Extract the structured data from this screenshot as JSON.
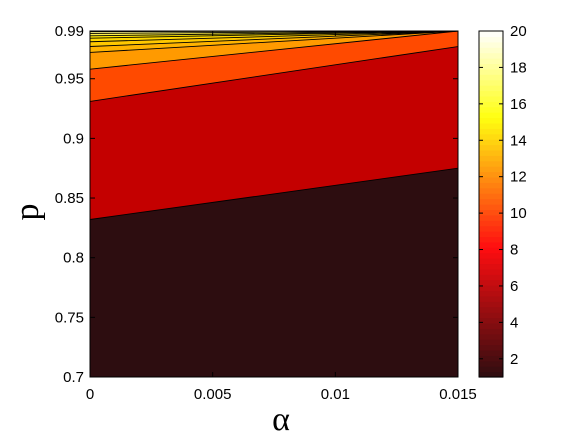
{
  "chart_data": {
    "type": "contour",
    "title": "",
    "xlabel": "α",
    "ylabel": "p",
    "xlim": [
      0,
      0.015
    ],
    "ylim": [
      0.7,
      0.99
    ],
    "x_ticks": [
      0,
      0.005,
      0.01,
      0.015
    ],
    "x_tick_labels": [
      "0",
      "0.005",
      "0.01",
      "0.015"
    ],
    "y_ticks": [
      0.7,
      0.75,
      0.8,
      0.85,
      0.9,
      0.95,
      0.99
    ],
    "y_tick_labels": [
      "0.7",
      "0.75",
      "0.8",
      "0.85",
      "0.9",
      "0.95",
      "0.99"
    ],
    "colorbar": {
      "range": [
        1,
        20
      ],
      "ticks": [
        2,
        4,
        6,
        8,
        10,
        12,
        14,
        16,
        18,
        20
      ],
      "tick_labels": [
        "2",
        "4",
        "6",
        "8",
        "10",
        "12",
        "14",
        "16",
        "18",
        "20"
      ],
      "colormap": "hot"
    },
    "contour_boundaries": [
      {
        "level": 2,
        "p_at_alpha_min": 0.832,
        "p_at_alpha_max": 0.875,
        "fill_below": "#2d0d10"
      },
      {
        "level": 3,
        "p_at_alpha_min": 0.931,
        "p_at_alpha_max": 0.977,
        "fill_below": "#c40000"
      },
      {
        "level": 4,
        "p_at_alpha_min": 0.958,
        "p_at_alpha_max": 0.99,
        "fill_below": "#ff4a00"
      },
      {
        "level": 5,
        "p_at_alpha_min": 0.972,
        "p_at_alpha_max": 0.99,
        "fill_below": "#ff9a00"
      },
      {
        "level": 6,
        "p_at_alpha_min": 0.977,
        "p_at_alpha_max": 0.99,
        "fill_below": "#ffb300"
      },
      {
        "level": 7,
        "p_at_alpha_min": 0.981,
        "p_at_alpha_max": 0.99,
        "fill_below": "#ffc800"
      },
      {
        "level": 8,
        "p_at_alpha_min": 0.984,
        "p_at_alpha_max": 0.99,
        "fill_below": "#ffd800"
      },
      {
        "level": 10,
        "p_at_alpha_min": 0.986,
        "p_at_alpha_max": 0.99,
        "fill_below": "#ffe600"
      },
      {
        "level": 12,
        "p_at_alpha_min": 0.988,
        "p_at_alpha_max": 0.99,
        "fill_below": "#fff04a"
      },
      {
        "level": 14,
        "p_at_alpha_min": 0.9895,
        "p_at_alpha_max": 0.99,
        "fill_below": "#fff88a"
      }
    ],
    "top_fill": "#fffbe0",
    "contour_line_color": "#000000",
    "grid": false
  }
}
